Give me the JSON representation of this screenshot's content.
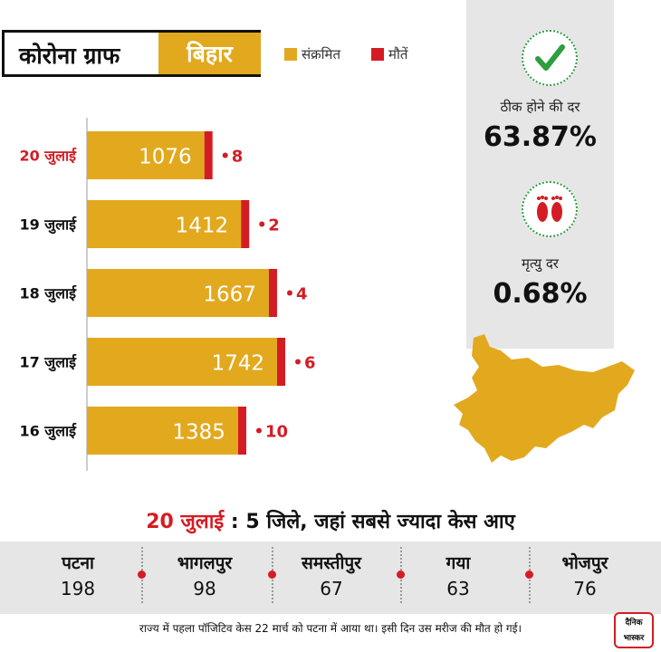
{
  "header": {
    "title": "कोरोना ग्राफ",
    "state": "बिहार"
  },
  "legend": [
    {
      "label": "संक्रमित",
      "color": "#e2a91f"
    },
    {
      "label": "मौतें",
      "color": "#d41c24"
    }
  ],
  "stats": {
    "recovery_label": "ठीक होने की दर",
    "recovery_value": "63.87%",
    "death_label": "मृत्यु दर",
    "death_value": "0.68%"
  },
  "chart_data": {
    "type": "bar",
    "orientation": "horizontal",
    "categories": [
      "20 जुलाई",
      "19 जुलाई",
      "18 जुलाई",
      "17 जुलाई",
      "16 जुलाई"
    ],
    "series": [
      {
        "name": "संक्रमित",
        "values": [
          1076,
          1412,
          1667,
          1742,
          1385
        ],
        "color": "#e2a91f"
      },
      {
        "name": "मौतें",
        "values": [
          8,
          2,
          4,
          6,
          10
        ],
        "color": "#d41c24"
      }
    ],
    "highlight_category": "20 जुलाई",
    "xlim": [
      0,
      1800
    ]
  },
  "districts": {
    "date": "20 जुलाई",
    "title_rest": "5 जिले, जहां सबसे ज्यादा केस आए",
    "items": [
      {
        "name": "पटना",
        "value": "198"
      },
      {
        "name": "भागलपुर",
        "value": "98"
      },
      {
        "name": "समस्तीपुर",
        "value": "67"
      },
      {
        "name": "गया",
        "value": "63"
      },
      {
        "name": "भोजपुर",
        "value": "76"
      }
    ]
  },
  "footnote": "राज्य में पहला पॉजिटिव केस 22 मार्च को पटना में आया था। इसी दिन उस मरीज की मौत हो गई।",
  "logo": {
    "line1": "दैनिक",
    "line2": "भास्कर"
  }
}
